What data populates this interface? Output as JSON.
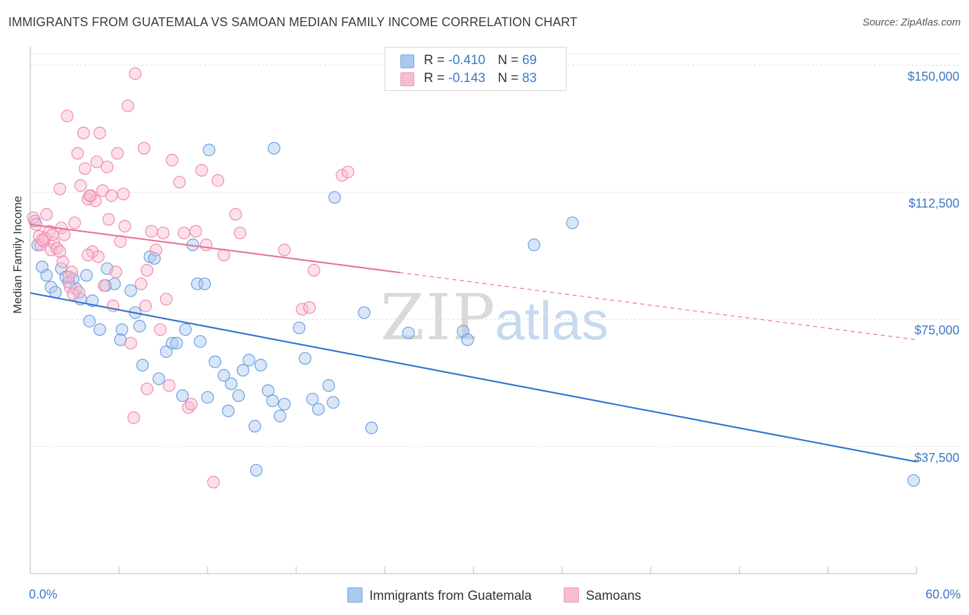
{
  "title": "IMMIGRANTS FROM GUATEMALA VS SAMOAN MEDIAN FAMILY INCOME CORRELATION CHART",
  "source": "Source: ZipAtlas.com",
  "watermark": {
    "part1": "ZIP",
    "part2": "atlas"
  },
  "legend": {
    "rows": [
      {
        "r_label": "R = ",
        "r_value": "-0.410",
        "n_label": "N = ",
        "n_value": "69",
        "color": "#aac8f0"
      },
      {
        "r_label": "R = ",
        "r_value": "-0.143",
        "n_label": "N = ",
        "n_value": "83",
        "color": "#f8bcd0"
      }
    ]
  },
  "chart_data": {
    "type": "scatter",
    "ylabel": "Median Family Income",
    "xlim": [
      0,
      60
    ],
    "ylim": [
      0,
      155000
    ],
    "x_tick_labels": {
      "left": "0.0%",
      "right": "60.0%"
    },
    "y_ticks": [
      {
        "value": 37500,
        "label": "$37,500"
      },
      {
        "value": 75000,
        "label": "$75,000"
      },
      {
        "value": 112500,
        "label": "$112,500"
      },
      {
        "value": 150000,
        "label": "$150,000"
      }
    ],
    "grid": true,
    "series": [
      {
        "name": "Immigrants from Guatemala",
        "color": "#6a9fe0",
        "fill": "#aac8f0",
        "line_color": "#2f74d0",
        "trend": {
          "x0": 0,
          "y0": 82800,
          "x1": 60,
          "y1": 33000,
          "dashed_from": null
        },
        "points": [
          [
            0.3,
            104000
          ],
          [
            0.5,
            97000
          ],
          [
            0.8,
            90500
          ],
          [
            1.1,
            88000
          ],
          [
            1.4,
            84500
          ],
          [
            1.7,
            83000
          ],
          [
            2.1,
            90000
          ],
          [
            2.4,
            87500
          ],
          [
            2.6,
            86000
          ],
          [
            2.9,
            87000
          ],
          [
            3.1,
            84000
          ],
          [
            3.4,
            81000
          ],
          [
            3.8,
            88000
          ],
          [
            4.2,
            80500
          ],
          [
            4.0,
            74500
          ],
          [
            4.7,
            72000
          ],
          [
            5.2,
            90000
          ],
          [
            5.1,
            85000
          ],
          [
            5.7,
            85500
          ],
          [
            6.2,
            72000
          ],
          [
            6.1,
            69000
          ],
          [
            6.8,
            83500
          ],
          [
            7.1,
            77000
          ],
          [
            7.4,
            73000
          ],
          [
            7.6,
            61500
          ],
          [
            8.1,
            93500
          ],
          [
            8.4,
            93000
          ],
          [
            8.7,
            57500
          ],
          [
            9.2,
            65500
          ],
          [
            9.6,
            68000
          ],
          [
            9.9,
            68000
          ],
          [
            10.3,
            52500
          ],
          [
            10.5,
            72000
          ],
          [
            11.0,
            97000
          ],
          [
            11.3,
            85500
          ],
          [
            11.5,
            68500
          ],
          [
            11.8,
            85500
          ],
          [
            12.1,
            125000
          ],
          [
            12.0,
            52000
          ],
          [
            12.5,
            62500
          ],
          [
            13.1,
            58500
          ],
          [
            13.4,
            48000
          ],
          [
            13.6,
            56000
          ],
          [
            14.1,
            52500
          ],
          [
            14.4,
            60000
          ],
          [
            14.8,
            63000
          ],
          [
            15.3,
            30500
          ],
          [
            15.6,
            61500
          ],
          [
            15.2,
            43500
          ],
          [
            16.1,
            54000
          ],
          [
            16.4,
            51000
          ],
          [
            16.9,
            46500
          ],
          [
            17.2,
            50000
          ],
          [
            18.2,
            72500
          ],
          [
            18.6,
            63500
          ],
          [
            19.1,
            51500
          ],
          [
            19.5,
            48500
          ],
          [
            20.2,
            55500
          ],
          [
            20.5,
            50500
          ],
          [
            20.6,
            111000
          ],
          [
            22.6,
            77000
          ],
          [
            23.1,
            43000
          ],
          [
            25.6,
            71000
          ],
          [
            29.3,
            71500
          ],
          [
            29.6,
            69000
          ],
          [
            34.1,
            97000
          ],
          [
            36.7,
            103500
          ],
          [
            59.8,
            27500
          ],
          [
            16.5,
            125500
          ]
        ]
      },
      {
        "name": "Samoans",
        "color": "#f08aac",
        "fill": "#f8bcd0",
        "line_color": "#e8709a",
        "trend": {
          "x0": 0,
          "y0": 103000,
          "x1": 60,
          "y1": 69000,
          "solid_until": 25
        },
        "points": [
          [
            0.2,
            105000
          ],
          [
            0.4,
            103000
          ],
          [
            0.6,
            99500
          ],
          [
            0.7,
            97000
          ],
          [
            0.9,
            98000
          ],
          [
            1.1,
            106000
          ],
          [
            1.3,
            101000
          ],
          [
            1.4,
            95500
          ],
          [
            1.6,
            97500
          ],
          [
            1.8,
            96000
          ],
          [
            2.0,
            95000
          ],
          [
            2.1,
            102000
          ],
          [
            2.3,
            100000
          ],
          [
            2.0,
            113500
          ],
          [
            2.5,
            135000
          ],
          [
            2.7,
            84500
          ],
          [
            2.8,
            89000
          ],
          [
            3.0,
            103500
          ],
          [
            3.2,
            124000
          ],
          [
            3.4,
            114500
          ],
          [
            3.6,
            130000
          ],
          [
            3.7,
            119500
          ],
          [
            3.9,
            110500
          ],
          [
            4.1,
            111500
          ],
          [
            4.2,
            95000
          ],
          [
            4.4,
            110000
          ],
          [
            4.5,
            121500
          ],
          [
            4.7,
            130000
          ],
          [
            4.9,
            113000
          ],
          [
            5.0,
            85000
          ],
          [
            5.2,
            120000
          ],
          [
            5.3,
            104500
          ],
          [
            5.5,
            111500
          ],
          [
            5.6,
            79000
          ],
          [
            5.9,
            124000
          ],
          [
            6.1,
            98000
          ],
          [
            6.4,
            102500
          ],
          [
            6.6,
            138000
          ],
          [
            6.8,
            68000
          ],
          [
            7.1,
            147500
          ],
          [
            7.0,
            46000
          ],
          [
            7.5,
            85500
          ],
          [
            7.7,
            125500
          ],
          [
            7.8,
            79000
          ],
          [
            7.9,
            89500
          ],
          [
            8.2,
            101000
          ],
          [
            8.5,
            95500
          ],
          [
            8.8,
            72000
          ],
          [
            9.0,
            100500
          ],
          [
            9.2,
            81000
          ],
          [
            9.6,
            122000
          ],
          [
            10.1,
            115500
          ],
          [
            10.4,
            100500
          ],
          [
            10.7,
            49000
          ],
          [
            11.2,
            101000
          ],
          [
            11.6,
            119000
          ],
          [
            11.9,
            97000
          ],
          [
            12.7,
            116000
          ],
          [
            13.1,
            94000
          ],
          [
            13.9,
            106000
          ],
          [
            14.2,
            100500
          ],
          [
            17.2,
            95500
          ],
          [
            18.4,
            78000
          ],
          [
            18.9,
            78500
          ],
          [
            19.2,
            89500
          ],
          [
            21.1,
            117500
          ],
          [
            21.5,
            118500
          ],
          [
            12.4,
            27000
          ],
          [
            3.3,
            83000
          ],
          [
            4.0,
            111500
          ],
          [
            2.9,
            82500
          ],
          [
            6.3,
            112000
          ],
          [
            1.0,
            99000
          ],
          [
            0.8,
            98500
          ],
          [
            2.2,
            92000
          ],
          [
            7.9,
            54500
          ],
          [
            10.9,
            50000
          ],
          [
            4.6,
            93500
          ],
          [
            3.9,
            94000
          ],
          [
            1.5,
            100000
          ],
          [
            5.8,
            89000
          ],
          [
            2.6,
            87500
          ],
          [
            9.4,
            55500
          ]
        ]
      }
    ]
  }
}
